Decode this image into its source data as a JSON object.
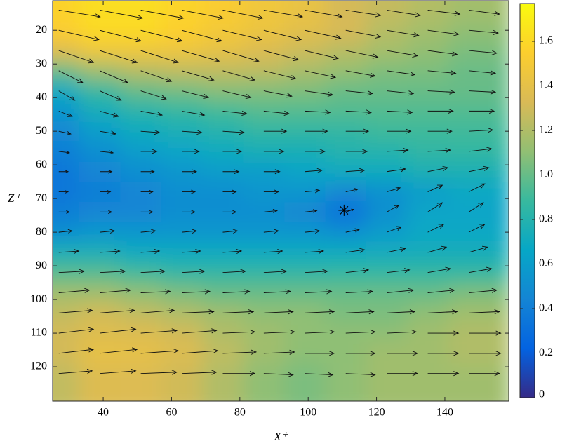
{
  "chart_data": {
    "type": "quiver",
    "x_label": "X⁺",
    "y_label": "Z⁺",
    "xlim": [
      25.2,
      158.7
    ],
    "ylim": [
      11.2,
      130.2
    ],
    "y_reverse": true,
    "xticks": [
      40,
      60,
      80,
      100,
      120,
      140
    ],
    "yticks": [
      20,
      30,
      40,
      50,
      60,
      70,
      80,
      90,
      100,
      110,
      120
    ],
    "x": [
      27,
      39,
      51,
      63,
      75,
      87,
      99,
      111,
      123,
      135,
      147
    ],
    "z": [
      14,
      20,
      26,
      32,
      38,
      44,
      50,
      56,
      62,
      68,
      74,
      80,
      86,
      92,
      98,
      104,
      110,
      116,
      122
    ],
    "u": [
      [
        1.55,
        1.6,
        1.6,
        1.55,
        1.5,
        1.45,
        1.4,
        1.3,
        1.25,
        1.2,
        1.15
      ],
      [
        1.5,
        1.55,
        1.55,
        1.5,
        1.45,
        1.4,
        1.35,
        1.3,
        1.2,
        1.15,
        1.1
      ],
      [
        1.3,
        1.4,
        1.4,
        1.4,
        1.35,
        1.3,
        1.25,
        1.2,
        1.15,
        1.1,
        1.05
      ],
      [
        0.9,
        1.05,
        1.15,
        1.2,
        1.2,
        1.2,
        1.15,
        1.1,
        1.05,
        1.05,
        1.0
      ],
      [
        0.6,
        0.8,
        0.95,
        1.0,
        1.05,
        1.05,
        1.05,
        1.0,
        1.0,
        1.0,
        1.0
      ],
      [
        0.5,
        0.7,
        0.8,
        0.85,
        0.9,
        0.95,
        0.95,
        0.95,
        0.95,
        0.95,
        0.95
      ],
      [
        0.45,
        0.6,
        0.7,
        0.75,
        0.8,
        0.85,
        0.85,
        0.85,
        0.9,
        0.9,
        0.9
      ],
      [
        0.4,
        0.5,
        0.6,
        0.65,
        0.7,
        0.75,
        0.75,
        0.8,
        0.8,
        0.85,
        0.85
      ],
      [
        0.35,
        0.45,
        0.5,
        0.55,
        0.6,
        0.6,
        0.65,
        0.7,
        0.7,
        0.75,
        0.75
      ],
      [
        0.35,
        0.4,
        0.45,
        0.5,
        0.5,
        0.55,
        0.55,
        0.45,
        0.5,
        0.55,
        0.6
      ],
      [
        0.4,
        0.45,
        0.45,
        0.5,
        0.5,
        0.5,
        0.45,
        0.3,
        0.45,
        0.55,
        0.55
      ],
      [
        0.5,
        0.55,
        0.55,
        0.55,
        0.55,
        0.55,
        0.55,
        0.5,
        0.55,
        0.6,
        0.6
      ],
      [
        0.75,
        0.75,
        0.7,
        0.7,
        0.7,
        0.7,
        0.7,
        0.7,
        0.7,
        0.7,
        0.7
      ],
      [
        0.95,
        0.95,
        0.9,
        0.85,
        0.85,
        0.85,
        0.85,
        0.85,
        0.85,
        0.85,
        0.85
      ],
      [
        1.15,
        1.15,
        1.1,
        1.05,
        1.0,
        1.0,
        1.0,
        1.0,
        1.0,
        1.0,
        1.05
      ],
      [
        1.25,
        1.3,
        1.25,
        1.2,
        1.15,
        1.1,
        1.1,
        1.05,
        1.05,
        1.1,
        1.15
      ],
      [
        1.3,
        1.35,
        1.35,
        1.3,
        1.2,
        1.15,
        1.1,
        1.1,
        1.1,
        1.15,
        1.2
      ],
      [
        1.3,
        1.4,
        1.4,
        1.35,
        1.25,
        1.15,
        1.1,
        1.1,
        1.15,
        1.15,
        1.2
      ],
      [
        1.25,
        1.35,
        1.35,
        1.3,
        1.2,
        1.1,
        1.05,
        1.1,
        1.15,
        1.15,
        1.15
      ]
    ],
    "w": [
      [
        0.25,
        0.3,
        0.3,
        0.3,
        0.3,
        0.25,
        0.25,
        0.2,
        0.2,
        0.15,
        0.15
      ],
      [
        0.35,
        0.4,
        0.4,
        0.4,
        0.35,
        0.35,
        0.3,
        0.25,
        0.2,
        0.15,
        0.1
      ],
      [
        0.45,
        0.45,
        0.45,
        0.4,
        0.4,
        0.35,
        0.3,
        0.25,
        0.2,
        0.15,
        0.1
      ],
      [
        0.45,
        0.45,
        0.4,
        0.35,
        0.35,
        0.3,
        0.25,
        0.2,
        0.15,
        0.1,
        0.1
      ],
      [
        0.35,
        0.35,
        0.3,
        0.25,
        0.25,
        0.2,
        0.15,
        0.1,
        0.1,
        0.05,
        0.05
      ],
      [
        0.2,
        0.2,
        0.15,
        0.15,
        0.1,
        0.1,
        0.05,
        0.05,
        0.05,
        0.0,
        0.0
      ],
      [
        0.1,
        0.1,
        0.05,
        0.05,
        0.05,
        0.0,
        0.0,
        0.0,
        0.0,
        0.0,
        -0.05
      ],
      [
        0.05,
        0.05,
        0.0,
        0.0,
        0.0,
        0.0,
        0.0,
        0.0,
        -0.05,
        -0.05,
        -0.1
      ],
      [
        0.0,
        0.0,
        0.0,
        0.0,
        0.0,
        0.0,
        -0.05,
        -0.05,
        -0.1,
        -0.15,
        -0.15
      ],
      [
        0.0,
        0.0,
        0.0,
        0.0,
        0.0,
        0.0,
        -0.05,
        -0.1,
        -0.15,
        -0.25,
        -0.3
      ],
      [
        0.0,
        0.0,
        0.0,
        0.0,
        0.0,
        -0.05,
        -0.05,
        -0.1,
        -0.25,
        -0.35,
        -0.35
      ],
      [
        -0.05,
        -0.05,
        -0.05,
        -0.05,
        -0.05,
        -0.05,
        -0.05,
        -0.1,
        -0.2,
        -0.3,
        -0.3
      ],
      [
        -0.05,
        -0.05,
        -0.05,
        -0.05,
        -0.05,
        -0.05,
        -0.05,
        -0.1,
        -0.15,
        -0.2,
        -0.2
      ],
      [
        -0.05,
        -0.05,
        -0.05,
        -0.05,
        -0.05,
        -0.05,
        -0.05,
        -0.1,
        -0.1,
        -0.15,
        -0.15
      ],
      [
        -0.1,
        -0.1,
        -0.05,
        -0.05,
        -0.05,
        -0.05,
        -0.05,
        -0.05,
        -0.1,
        -0.1,
        -0.1
      ],
      [
        -0.1,
        -0.1,
        -0.1,
        -0.05,
        -0.05,
        -0.05,
        -0.05,
        -0.05,
        -0.05,
        -0.05,
        -0.05
      ],
      [
        -0.15,
        -0.15,
        -0.1,
        -0.1,
        -0.05,
        -0.05,
        -0.05,
        -0.05,
        -0.05,
        0.0,
        0.0
      ],
      [
        -0.15,
        -0.15,
        -0.1,
        -0.1,
        -0.05,
        -0.05,
        0.0,
        0.0,
        0.0,
        0.0,
        0.0
      ],
      [
        -0.1,
        -0.1,
        -0.05,
        -0.05,
        0.0,
        0.05,
        0.05,
        0.05,
        0.0,
        0.0,
        0.0
      ]
    ],
    "marker": {
      "x": 110.5,
      "z": 73.5
    },
    "clim": [
      0,
      1.77
    ],
    "cticks": [
      0,
      0.2,
      0.4,
      0.6,
      0.8,
      {
        "value": 1,
        "label": "1.0"
      },
      1.2,
      1.4,
      1.6
    ],
    "colormap": [
      "#352a87",
      "#0363e1",
      "#1485d4",
      "#06a7c6",
      "#38b99e",
      "#92bf73",
      "#d9ba56",
      "#fcce2e",
      "#f9fb0e"
    ]
  }
}
